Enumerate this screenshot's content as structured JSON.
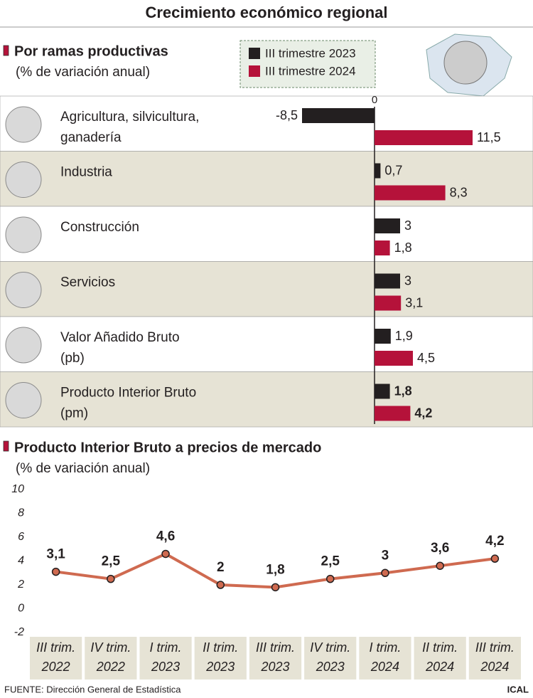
{
  "title": "Crecimiento económico regional",
  "source": "FUENTE: Dirección General de Estadística",
  "credit": "ICAL",
  "chart_data": [
    {
      "type": "bar",
      "orientation": "horizontal",
      "title": "Por ramas productivas",
      "subtitle": "(% de variación anual)",
      "categories": [
        [
          "Agricultura, silvicultura,",
          "ganadería"
        ],
        [
          "Industria"
        ],
        [
          "Construcción"
        ],
        [
          "Servicios"
        ],
        [
          "Valor Añadido Bruto",
          "(pb)"
        ],
        [
          "Producto Interior Bruto",
          "(pm)"
        ]
      ],
      "series": [
        {
          "name": "III trimestre 2023",
          "color": "#231f20",
          "values": [
            -8.5,
            0.7,
            3,
            3,
            1.9,
            1.8
          ],
          "value_labels": [
            "-8,5",
            "0,7",
            "3",
            "3",
            "1,9",
            "1,8"
          ]
        },
        {
          "name": "III trimestre 2024",
          "color": "#b5123a",
          "values": [
            11.5,
            8.3,
            1.8,
            3.1,
            4.5,
            4.2
          ],
          "value_labels": [
            "11,5",
            "8,3",
            "1,8",
            "3,1",
            "4,5",
            "4,2"
          ]
        }
      ],
      "xlim": [
        -12.5,
        17.5
      ],
      "xticks": [
        0
      ]
    },
    {
      "type": "line",
      "title": "Producto Interior Bruto a precios de mercado",
      "subtitle": "(% de variación anual)",
      "categories": [
        [
          "III trim.",
          "2022"
        ],
        [
          "IV trim.",
          "2022"
        ],
        [
          "I trim.",
          "2023"
        ],
        [
          "II trim.",
          "2023"
        ],
        [
          "III trim.",
          "2023"
        ],
        [
          "IV trim.",
          "2023"
        ],
        [
          "I trim.",
          "2024"
        ],
        [
          "II trim.",
          "2024"
        ],
        [
          "III trim.",
          "2024"
        ]
      ],
      "values": [
        3.1,
        2.5,
        4.6,
        2,
        1.8,
        2.5,
        3,
        3.6,
        4.2
      ],
      "value_labels": [
        "3,1",
        "2,5",
        "4,6",
        "2",
        "1,8",
        "2,5",
        "3",
        "3,6",
        "4,2"
      ],
      "color": "#cf6a50",
      "ylim": [
        -2,
        10
      ],
      "yticks": [
        -2,
        0,
        2,
        4,
        6,
        8,
        10
      ]
    }
  ]
}
